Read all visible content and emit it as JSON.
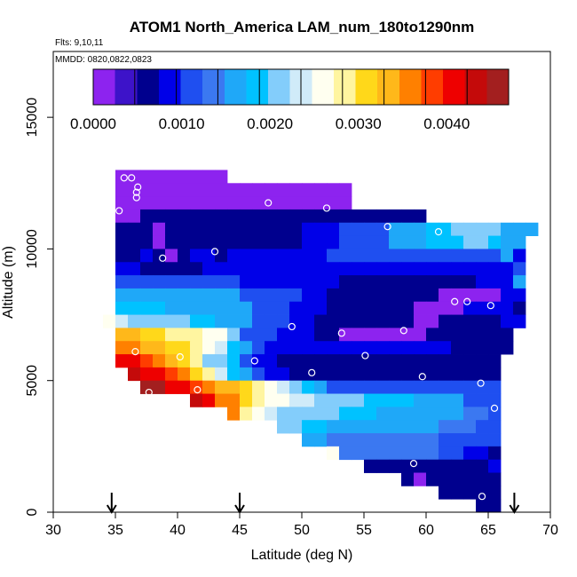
{
  "chart_data": {
    "type": "heatmap",
    "title": "ATOM1 North_America LAM_num_180to1290nm",
    "annotations": [
      "Flts: 9,10,11",
      "MMDD: 0820,0822,0823"
    ],
    "xlabel": "Latitude (deg N)",
    "ylabel": "Altitude (m)",
    "xlim": [
      30,
      70
    ],
    "ylim": [
      0,
      17500
    ],
    "x_ticks": [
      "30",
      "35",
      "40",
      "45",
      "50",
      "55",
      "60",
      "65",
      "70"
    ],
    "y_ticks": [
      "0",
      "5000",
      "10000",
      "15000"
    ],
    "colorbar": {
      "range": [
        0,
        0.0047
      ],
      "tick_values": [
        0,
        0.001,
        0.002,
        0.003,
        0.004
      ],
      "tick_labels": [
        "0.0000",
        "0.0010",
        "0.0020",
        "0.0030",
        "0.0040"
      ],
      "colors": [
        "#8d23ef",
        "#3d13c9",
        "#00008e",
        "#0000e8",
        "#1f4ff0",
        "#3b78f1",
        "#1fa8f8",
        "#00c2ff",
        "#83cdfb",
        "#d0ebf9",
        "#fffff0",
        "#fff5a0",
        "#ffd81a",
        "#ffb81a",
        "#ff8000",
        "#ff3d00",
        "#ee0000",
        "#c40a0a",
        "#a31f1f"
      ]
    },
    "flight_markers": {
      "type": "arrow",
      "latitudes": [
        34.7,
        45,
        67.1
      ]
    },
    "cell_size": {
      "lat": 1.0,
      "alt": 500
    },
    "rows": [
      {
        "alt": 12750,
        "start": 35.0,
        "values": [
          5e-05,
          5e-05,
          5e-05,
          5e-05,
          5e-05,
          5e-05,
          5e-05,
          5e-05,
          5e-05
        ]
      },
      {
        "alt": 12250,
        "start": 35.0,
        "values": [
          5e-05,
          5e-05,
          5e-05,
          5e-05,
          5e-05,
          5e-05,
          5e-05,
          5e-05,
          5e-05,
          5e-05,
          5e-05,
          5e-05,
          5e-05,
          5e-05,
          5e-05,
          5e-05,
          5e-05,
          5e-05,
          5e-05
        ]
      },
      {
        "alt": 11750,
        "start": 35.0,
        "values": [
          5e-05,
          5e-05,
          5e-05,
          5e-05,
          5e-05,
          5e-05,
          5e-05,
          5e-05,
          5e-05,
          5e-05,
          5e-05,
          5e-05,
          5e-05,
          5e-05,
          5e-05,
          5e-05,
          5e-05,
          5e-05,
          5e-05
        ]
      },
      {
        "alt": 11250,
        "start": 35.0,
        "values": [
          5e-05,
          5e-05,
          0.0005,
          0.0005,
          0.0005,
          0.0005,
          0.0005,
          0.0005,
          0.0005,
          0.0005,
          0.0005,
          0.0005,
          0.0005,
          0.0005,
          0.0005,
          0.0005,
          0.0005,
          0.0005,
          0.0005,
          0.0005,
          0.0005,
          0.0005,
          0.0005,
          0.0005,
          0.0005
        ]
      },
      {
        "alt": 10750,
        "start": 35.0,
        "values": [
          0.0005,
          0.0005,
          0.0005,
          5e-05,
          0.0005,
          0.0005,
          0.0005,
          0.0005,
          0.0005,
          0.0005,
          0.0005,
          0.0005,
          0.0005,
          0.0005,
          0.0005,
          0.0008,
          0.0008,
          0.0008,
          0.001,
          0.001,
          0.0012,
          0.0012,
          0.0015,
          0.0016,
          0.0016,
          0.0018,
          0.0018,
          0.002,
          0.002,
          0.0022,
          0.0022,
          0.0016,
          0.0016,
          0.0015
        ]
      },
      {
        "alt": 10250,
        "start": 35.0,
        "values": [
          0.0005,
          0.0005,
          0.0005,
          5e-05,
          0.0005,
          0.0005,
          0.0005,
          0.0005,
          0.0005,
          0.0005,
          0.0005,
          0.0005,
          0.0005,
          0.0005,
          0.0005,
          0.0008,
          0.0008,
          0.0008,
          0.001,
          0.001,
          0.0012,
          0.0012,
          0.0015,
          0.0016,
          0.0016,
          0.0018,
          0.0018,
          0.0018,
          0.002,
          0.002,
          0.0018,
          0.0015,
          0.0015
        ]
      },
      {
        "alt": 9750,
        "start": 35.0,
        "values": [
          0.0005,
          0.0005,
          0.0008,
          0.0005,
          5e-05,
          0.0005,
          0.0008,
          0.0008,
          0.0005,
          0.0008,
          0.0008,
          0.0008,
          0.0009,
          0.0009,
          0.0009,
          0.0009,
          0.0009,
          0.001,
          0.001,
          0.001,
          0.0012,
          0.0012,
          0.0012,
          0.0012,
          0.0012,
          0.0012,
          0.0012,
          0.0012,
          0.0012,
          0.0012,
          0.0012,
          0.0015,
          0.0008
        ]
      },
      {
        "alt": 9250,
        "start": 35.0,
        "values": [
          0.0009,
          0.0009,
          0.0005,
          0.0005,
          0.0005,
          0.0005,
          0.0005,
          0.0009,
          0.0009,
          0.0009,
          0.0009,
          0.0009,
          0.0009,
          0.0009,
          0.0009,
          0.0009,
          0.0009,
          0.0009,
          0.0009,
          0.0009,
          0.0009,
          0.0009,
          0.0009,
          0.0009,
          0.0009,
          0.0009,
          0.0009,
          0.0009,
          0.0009,
          0.0008,
          0.0008,
          0.0008,
          0.001
        ]
      },
      {
        "alt": 8750,
        "start": 35.0,
        "values": [
          0.0012,
          0.0012,
          0.0012,
          0.0012,
          0.0012,
          0.0012,
          0.0012,
          0.0012,
          0.0012,
          0.0012,
          0.0009,
          0.0009,
          0.0009,
          0.0009,
          0.0009,
          0.0008,
          0.0008,
          0.0008,
          0.0005,
          0.0005,
          0.0005,
          0.0005,
          0.0005,
          0.0005,
          0.0005,
          0.0005,
          0.0005,
          0.0005,
          0.0005,
          0.0008,
          0.0008,
          0.0008,
          0.0015
        ]
      },
      {
        "alt": 8250,
        "start": 35.0,
        "values": [
          0.0015,
          0.0015,
          0.0015,
          0.0015,
          0.0015,
          0.0015,
          0.0015,
          0.0015,
          0.0015,
          0.0015,
          0.0012,
          0.0012,
          0.0012,
          0.0012,
          0.0012,
          0.0009,
          0.0009,
          0.0005,
          0.0005,
          0.0005,
          0.0005,
          0.0005,
          0.0005,
          0.0005,
          0.0005,
          0.0005,
          0.0002,
          0.0002,
          0.0002,
          0.0002,
          0.0002,
          0.0008,
          0.0009
        ]
      },
      {
        "alt": 7750,
        "start": 35.0,
        "values": [
          0.0019,
          0.0019,
          0.0018,
          0.0018,
          0.0017,
          0.0017,
          0.0017,
          0.0017,
          0.0015,
          0.0015,
          0.0015,
          0.0012,
          0.0012,
          0.0012,
          0.0009,
          0.0009,
          0.0008,
          0.0005,
          0.0005,
          0.0005,
          0.0005,
          0.0005,
          0.0005,
          0.0005,
          0.0002,
          0.0002,
          0.0002,
          0.0002,
          0.0008,
          0.0008,
          0.0008,
          0.0008,
          0.0005
        ]
      },
      {
        "alt": 7250,
        "start": 34.0,
        "values": [
          0.0025,
          0.0024,
          0.0022,
          0.0022,
          0.002,
          0.002,
          0.002,
          0.0018,
          0.0018,
          0.0017,
          0.0015,
          0.0015,
          0.0012,
          0.0012,
          0.0012,
          0.0009,
          0.0008,
          0.0005,
          0.0005,
          0.0005,
          0.0005,
          0.0005,
          0.0005,
          0.0005,
          0.0005,
          0.0002,
          0.0002,
          0.0005,
          0.0005,
          0.0005,
          0.0005,
          0.0005,
          0.0008,
          0.0008
        ]
      },
      {
        "alt": 6750,
        "start": 35.0,
        "values": [
          0.0033,
          0.0033,
          0.003,
          0.003,
          0.0028,
          0.0028,
          0.0028,
          0.0026,
          0.0025,
          0.0022,
          0.0012,
          0.0012,
          0.0012,
          0.0009,
          0.0009,
          0.0008,
          0.0005,
          0.0005,
          5e-05,
          5e-05,
          5e-05,
          5e-05,
          5e-05,
          5e-05,
          5e-05,
          0.0005,
          0.0005,
          0.0005,
          0.0005,
          0.0005,
          0.0005,
          0.0005
        ]
      },
      {
        "alt": 6250,
        "start": 35.0,
        "values": [
          0.0037,
          0.0037,
          0.0034,
          0.0033,
          0.003,
          0.003,
          0.0028,
          0.0026,
          0.0024,
          0.0018,
          0.0015,
          0.0012,
          0.0009,
          0.0008,
          0.0008,
          0.0008,
          0.0008,
          0.0008,
          0.0008,
          0.0008,
          0.0008,
          0.0008,
          0.0008,
          0.0008,
          0.0008,
          0.0008,
          0.0008,
          0.0005,
          0.0005,
          0.0005,
          0.0005,
          0.0005
        ]
      },
      {
        "alt": 5750,
        "start": 35.0,
        "values": [
          0.0041,
          0.0042,
          0.0038,
          0.0037,
          0.0034,
          0.0031,
          0.0028,
          0.0022,
          0.002,
          0.0018,
          0.0012,
          0.0009,
          0.0008,
          0.0005,
          0.0005,
          0.0005,
          0.0005,
          0.0005,
          0.0005,
          0.0005,
          0.0005,
          0.0005,
          0.0005,
          0.0005,
          0.0005,
          0.0005,
          0.0005,
          0.0005,
          0.0005,
          0.0005,
          0.0005
        ]
      },
      {
        "alt": 5250,
        "start": 36.0,
        "values": [
          0.0043,
          0.0042,
          0.004,
          0.0038,
          0.0035,
          0.0031,
          0.0028,
          0.0024,
          0.0018,
          0.0015,
          0.0012,
          0.0009,
          0.0008,
          0.0005,
          0.0005,
          0.0005,
          0.0005,
          0.0005,
          0.0005,
          0.0005,
          0.0005,
          0.0005,
          0.0005,
          0.0005,
          0.0005,
          0.0005,
          0.0005,
          0.0005,
          0.0005,
          0.0005
        ]
      },
      {
        "alt": 4750,
        "start": 37.0,
        "values": [
          0.0047,
          0.0045,
          0.0042,
          0.0041,
          0.0038,
          0.0035,
          0.0034,
          0.0033,
          0.003,
          0.0028,
          0.0026,
          0.0024,
          0.0022,
          0.0018,
          0.0015,
          0.0012,
          0.0012,
          0.0012,
          0.0012,
          0.0012,
          0.0012,
          0.0012,
          0.0012,
          0.0012,
          0.0012,
          0.0012,
          0.0012,
          0.0012,
          0.0012
        ]
      },
      {
        "alt": 4250,
        "start": 41.0,
        "values": [
          0.0043,
          0.0041,
          0.0037,
          0.0035,
          0.0032,
          0.0028,
          0.0026,
          0.0025,
          0.0024,
          0.0023,
          0.0022,
          0.002,
          0.002,
          0.002,
          0.0019,
          0.0019,
          0.0018,
          0.0018,
          0.0017,
          0.0016,
          0.0015,
          0.0015,
          0.0012,
          0.0012,
          0.0012
        ]
      },
      {
        "alt": 3750,
        "start": 44.0,
        "values": [
          0.0037,
          0.0028,
          0.0027,
          0.0024,
          0.0022,
          0.002,
          0.002,
          0.002,
          0.002,
          0.0019,
          0.0019,
          0.0018,
          0.0017,
          0.0017,
          0.0016,
          0.0015,
          0.0015,
          0.0015,
          0.0015,
          0.0014,
          0.0014,
          0.0012
        ]
      },
      {
        "alt": 3250,
        "start": 48.0,
        "values": [
          0.0021,
          0.002,
          0.0018,
          0.0018,
          0.0017,
          0.0017,
          0.0017,
          0.0016,
          0.0016,
          0.0015,
          0.0015,
          0.0015,
          0.0015,
          0.0014,
          0.0014,
          0.0014,
          0.0012,
          0.0012
        ]
      },
      {
        "alt": 2750,
        "start": 50.0,
        "values": [
          0.0015,
          0.0015,
          0.0014,
          0.0014,
          0.0014,
          0.0014,
          0.0014,
          0.0014,
          0.0013,
          0.0013,
          0.0013,
          0.0012,
          0.0012,
          0.0012,
          0.0012,
          0.0012
        ]
      },
      {
        "alt": 2250,
        "start": 52.0,
        "values": [
          0.0026,
          0.0013,
          0.0013,
          0.0013,
          0.0013,
          0.0013,
          0.0013,
          0.0013,
          0.0013,
          0.0012,
          0.0012,
          0.0008,
          0.0008,
          0.0005
        ]
      },
      {
        "alt": 1750,
        "start": 55.0,
        "values": [
          0.0005,
          0.0005,
          0.0005,
          0.0005,
          0.0005,
          0.0005,
          0.0005,
          0.0005,
          0.0005,
          0.0005,
          0.0008
        ]
      },
      {
        "alt": 1250,
        "start": 58.0,
        "values": [
          0.0005,
          5e-05,
          0.0005,
          0.0005,
          0.0005,
          0.0005,
          0.0005,
          0.0005
        ]
      },
      {
        "alt": 750,
        "start": 61.0,
        "values": [
          0.0005,
          0.0005,
          0.0005,
          0.0005,
          0.0005
        ]
      },
      {
        "alt": 250,
        "start": 64.0,
        "values": [
          0.0005,
          0.0005
        ]
      }
    ],
    "sample_points": {
      "lat": [
        35.7,
        36.3,
        36.8,
        36.7,
        36.7,
        35.3,
        47.3,
        52.0,
        56.9,
        61.0,
        70.0,
        38.8,
        43.0,
        62.3,
        63.3,
        65.2,
        49.2,
        53.2,
        58.2,
        36.6,
        40.2,
        46.2,
        55.1,
        50.8,
        59.7,
        64.4,
        37.7,
        41.6,
        65.5,
        59.0,
        64.5
      ],
      "alt": [
        12700,
        12700,
        12350,
        12150,
        11950,
        11450,
        11750,
        11550,
        10850,
        10650,
        10850,
        9650,
        9900,
        8000,
        8000,
        7850,
        7050,
        6800,
        6900,
        6100,
        5900,
        5750,
        5950,
        5300,
        5150,
        4900,
        4550,
        4650,
        3950,
        1850,
        600
      ]
    }
  }
}
